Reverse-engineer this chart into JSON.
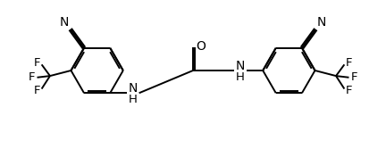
{
  "line_color": "#000000",
  "bg_color": "#ffffff",
  "lw": 1.4,
  "fs": 9.5,
  "figsize": [
    4.32,
    1.58
  ],
  "dpi": 100,
  "xlim": [
    0,
    10.5
  ],
  "ylim": [
    0,
    3.9
  ]
}
